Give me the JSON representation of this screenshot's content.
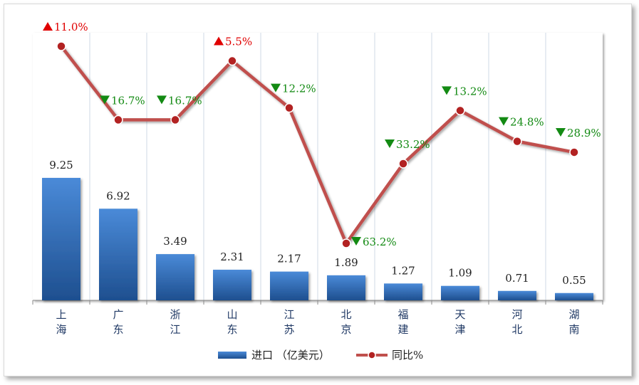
{
  "chart_data": {
    "type": "bar",
    "categories": [
      "上海",
      "广东",
      "浙江",
      "山东",
      "江苏",
      "北京",
      "福建",
      "天津",
      "河北",
      "湖南"
    ],
    "series": [
      {
        "name": "进口（亿美元）",
        "type": "bar",
        "values": [
          9.25,
          6.92,
          3.49,
          2.31,
          2.17,
          1.89,
          1.27,
          1.09,
          0.71,
          0.55
        ],
        "labels": [
          "9.25",
          "6.92",
          "3.49",
          "2.31",
          "2.17",
          "1.89",
          "1.27",
          "1.09",
          "0.71",
          "0.55"
        ],
        "color": "#3a75c4"
      },
      {
        "name": "同比%",
        "type": "line",
        "values": [
          11.0,
          -16.7,
          -16.7,
          5.5,
          -12.2,
          -63.2,
          -33.2,
          -13.2,
          -24.8,
          -28.9
        ],
        "labels": [
          "11.0%",
          "16.7%",
          "16.7%",
          "5.5%",
          "12.2%",
          "63.2%",
          "33.2%",
          "13.2%",
          "24.8%",
          "28.9%"
        ],
        "color": "#c0504d"
      }
    ],
    "legend": [
      "进口 （亿美元）",
      "同比%"
    ],
    "legend_position": "bottom",
    "grid": "vertical",
    "colors": {
      "up": "#e00000",
      "down": "#138a13",
      "bar_top": "#4a8ad8",
      "bar_bottom": "#1e4f8f",
      "line": "#c0504d",
      "marker": "#b22222",
      "grid": "#cfd9e6"
    }
  }
}
